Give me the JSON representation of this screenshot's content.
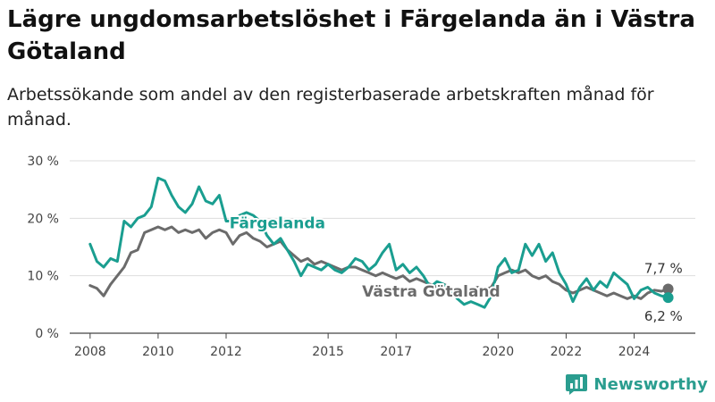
{
  "title": "Lägre ungdomsarbetslöshet i Färgelanda än i Västra Götaland",
  "subtitle": "Arbetssökande som andel av den registerbaserade arbetskraften månad för månad.",
  "brand": {
    "name": "Newsworthy"
  },
  "colors": {
    "fargelanda": "#1a9e90",
    "vastra": "#6b6b6b",
    "grid": "#dddddd",
    "axis": "#444444"
  },
  "chart_data": {
    "type": "line",
    "xlim": [
      2007.4,
      2025.8
    ],
    "ylim": [
      0,
      30
    ],
    "yticks": [
      {
        "value": 0,
        "label": "0 %"
      },
      {
        "value": 10,
        "label": "10 %"
      },
      {
        "value": 20,
        "label": "20 %"
      },
      {
        "value": 30,
        "label": "30 %"
      }
    ],
    "xticks": [
      {
        "value": 2008,
        "label": "2008"
      },
      {
        "value": 2010,
        "label": "2010"
      },
      {
        "value": 2012,
        "label": "2012"
      },
      {
        "value": 2015,
        "label": "2015"
      },
      {
        "value": 2017,
        "label": "2017"
      },
      {
        "value": 2020,
        "label": "2020"
      },
      {
        "value": 2022,
        "label": "2022"
      },
      {
        "value": 2024,
        "label": "2024"
      }
    ],
    "grid": true,
    "series": [
      {
        "name": "Färgelanda",
        "color": "#1a9e90",
        "x": [
          2008.0,
          2008.2,
          2008.4,
          2008.6,
          2008.8,
          2009.0,
          2009.2,
          2009.4,
          2009.6,
          2009.8,
          2010.0,
          2010.2,
          2010.4,
          2010.6,
          2010.8,
          2011.0,
          2011.2,
          2011.4,
          2011.6,
          2011.8,
          2012.0,
          2012.2,
          2012.4,
          2012.6,
          2012.8,
          2013.0,
          2013.2,
          2013.4,
          2013.6,
          2013.8,
          2014.0,
          2014.2,
          2014.4,
          2014.6,
          2014.8,
          2015.0,
          2015.2,
          2015.4,
          2015.6,
          2015.8,
          2016.0,
          2016.2,
          2016.4,
          2016.6,
          2016.8,
          2017.0,
          2017.2,
          2017.4,
          2017.6,
          2017.8,
          2018.0,
          2018.2,
          2018.4,
          2018.6,
          2018.8,
          2019.0,
          2019.2,
          2019.4,
          2019.6,
          2019.8,
          2020.0,
          2020.2,
          2020.4,
          2020.6,
          2020.8,
          2021.0,
          2021.2,
          2021.4,
          2021.6,
          2021.8,
          2022.0,
          2022.2,
          2022.4,
          2022.6,
          2022.8,
          2023.0,
          2023.2,
          2023.4,
          2023.6,
          2023.8,
          2024.0,
          2024.2,
          2024.4,
          2024.6,
          2024.8,
          2025.0
        ],
        "y": [
          15.5,
          12.5,
          11.5,
          13.0,
          12.5,
          19.5,
          18.5,
          20.0,
          20.5,
          22.0,
          27.0,
          26.5,
          24.0,
          22.0,
          21.0,
          22.5,
          25.5,
          23.0,
          22.5,
          24.0,
          19.5,
          19.5,
          20.5,
          21.0,
          20.5,
          19.5,
          17.0,
          15.5,
          16.5,
          14.5,
          12.5,
          10.0,
          12.0,
          11.5,
          11.0,
          12.0,
          11.0,
          10.5,
          11.5,
          13.0,
          12.5,
          11.0,
          12.0,
          14.0,
          15.5,
          11.0,
          12.0,
          10.5,
          11.5,
          10.0,
          8.0,
          9.0,
          8.5,
          7.5,
          6.0,
          5.0,
          5.5,
          5.0,
          4.5,
          6.5,
          11.5,
          13.0,
          10.5,
          11.0,
          15.5,
          13.5,
          15.5,
          12.5,
          14.0,
          10.5,
          8.5,
          5.5,
          8.0,
          9.5,
          7.5,
          9.0,
          8.0,
          10.5,
          9.5,
          8.5,
          6.0,
          7.5,
          8.0,
          7.0,
          6.5,
          6.2
        ]
      },
      {
        "name": "Västra Götaland",
        "color": "#6b6b6b",
        "x": [
          2008.0,
          2008.2,
          2008.4,
          2008.6,
          2008.8,
          2009.0,
          2009.2,
          2009.4,
          2009.6,
          2009.8,
          2010.0,
          2010.2,
          2010.4,
          2010.6,
          2010.8,
          2011.0,
          2011.2,
          2011.4,
          2011.6,
          2011.8,
          2012.0,
          2012.2,
          2012.4,
          2012.6,
          2012.8,
          2013.0,
          2013.2,
          2013.4,
          2013.6,
          2013.8,
          2014.0,
          2014.2,
          2014.4,
          2014.6,
          2014.8,
          2015.0,
          2015.2,
          2015.4,
          2015.6,
          2015.8,
          2016.0,
          2016.2,
          2016.4,
          2016.6,
          2016.8,
          2017.0,
          2017.2,
          2017.4,
          2017.6,
          2017.8,
          2018.0,
          2018.2,
          2018.4,
          2018.6,
          2018.8,
          2019.0,
          2019.2,
          2019.4,
          2019.6,
          2019.8,
          2020.0,
          2020.2,
          2020.4,
          2020.6,
          2020.8,
          2021.0,
          2021.2,
          2021.4,
          2021.6,
          2021.8,
          2022.0,
          2022.2,
          2022.4,
          2022.6,
          2022.8,
          2023.0,
          2023.2,
          2023.4,
          2023.6,
          2023.8,
          2024.0,
          2024.2,
          2024.4,
          2024.6,
          2024.8,
          2025.0
        ],
        "y": [
          8.3,
          7.8,
          6.5,
          8.5,
          10.0,
          11.5,
          14.0,
          14.5,
          17.5,
          18.0,
          18.5,
          18.0,
          18.5,
          17.5,
          18.0,
          17.5,
          18.0,
          16.5,
          17.5,
          18.0,
          17.5,
          15.5,
          17.0,
          17.5,
          16.5,
          16.0,
          15.0,
          15.5,
          16.0,
          14.5,
          13.5,
          12.5,
          13.0,
          12.0,
          12.5,
          12.0,
          11.5,
          11.0,
          11.5,
          11.5,
          11.0,
          10.5,
          10.0,
          10.5,
          10.0,
          9.5,
          10.0,
          9.0,
          9.5,
          9.0,
          8.5,
          8.0,
          8.5,
          8.0,
          7.5,
          7.0,
          7.5,
          8.0,
          7.5,
          8.0,
          10.0,
          10.5,
          11.0,
          10.5,
          11.0,
          10.0,
          9.5,
          10.0,
          9.0,
          8.5,
          7.5,
          7.0,
          7.5,
          8.0,
          7.5,
          7.0,
          6.5,
          7.0,
          6.5,
          6.0,
          6.5,
          6.0,
          7.0,
          7.5,
          7.3,
          7.7
        ]
      }
    ],
    "annotations": [
      {
        "text": "Färgelanda",
        "x": 2012.1,
        "y": 18.3,
        "color": "#1a9e90",
        "bold": true
      },
      {
        "text": "Västra Götaland",
        "x": 2016.0,
        "y": 6.4,
        "color": "#6b6b6b",
        "bold": true
      },
      {
        "text": "7,7 %",
        "x": 2024.3,
        "y": 10.5,
        "color": "#333333",
        "bold": false
      },
      {
        "text": "6,2 %",
        "x": 2024.3,
        "y": 2.2,
        "color": "#333333",
        "bold": false
      }
    ]
  }
}
